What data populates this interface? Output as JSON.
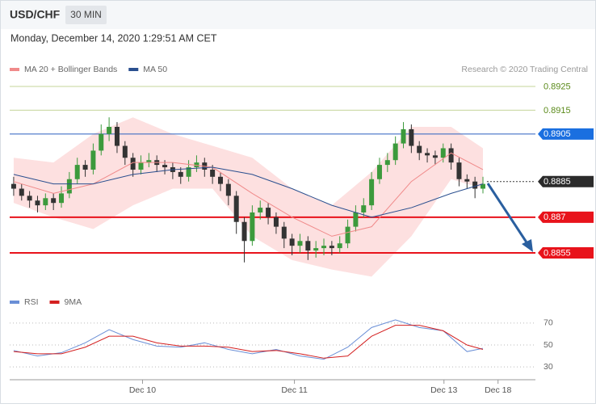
{
  "header": {
    "symbol": "USD/CHF",
    "interval": "30 MIN",
    "timestamp": "Monday, December 14, 2020 1:29:51 AM CET"
  },
  "chart_data": [
    {
      "type": "candlestick",
      "credit": "Research © 2020 Trading Central",
      "xlim": [
        -0.5,
        65.6
      ],
      "ylim": [
        0.8841,
        0.8931
      ],
      "up_color": "#3c9a3c",
      "down_color": "#333333",
      "candles": [
        [
          0.8884,
          0.8887,
          0.8879,
          0.8882
        ],
        [
          0.8882,
          0.8884,
          0.8877,
          0.8879
        ],
        [
          0.8879,
          0.8881,
          0.8874,
          0.8877
        ],
        [
          0.8877,
          0.8879,
          0.8872,
          0.8875
        ],
        [
          0.8875,
          0.888,
          0.8873,
          0.8878
        ],
        [
          0.8878,
          0.888,
          0.8873,
          0.8876
        ],
        [
          0.8876,
          0.8883,
          0.8874,
          0.888
        ],
        [
          0.888,
          0.8889,
          0.8878,
          0.8886
        ],
        [
          0.8886,
          0.8895,
          0.8884,
          0.8892
        ],
        [
          0.8892,
          0.8894,
          0.8887,
          0.889
        ],
        [
          0.889,
          0.8901,
          0.8888,
          0.8898
        ],
        [
          0.8898,
          0.8909,
          0.8896,
          0.8905
        ],
        [
          0.8905,
          0.8912,
          0.8902,
          0.8908
        ],
        [
          0.8908,
          0.891,
          0.8897,
          0.89
        ],
        [
          0.89,
          0.8902,
          0.8892,
          0.8895
        ],
        [
          0.8895,
          0.8897,
          0.8887,
          0.889
        ],
        [
          0.889,
          0.8896,
          0.8888,
          0.8893
        ],
        [
          0.8893,
          0.8897,
          0.8891,
          0.8894
        ],
        [
          0.8894,
          0.8896,
          0.8889,
          0.8892
        ],
        [
          0.8892,
          0.8894,
          0.8888,
          0.8891
        ],
        [
          0.8891,
          0.8893,
          0.8886,
          0.8889
        ],
        [
          0.8889,
          0.8891,
          0.8884,
          0.8887
        ],
        [
          0.8887,
          0.8894,
          0.8885,
          0.8891
        ],
        [
          0.8891,
          0.8896,
          0.8889,
          0.8893
        ],
        [
          0.8893,
          0.8895,
          0.8887,
          0.889
        ],
        [
          0.889,
          0.8892,
          0.8884,
          0.8887
        ],
        [
          0.8887,
          0.8889,
          0.8881,
          0.8884
        ],
        [
          0.8884,
          0.8886,
          0.8875,
          0.8879
        ],
        [
          0.8879,
          0.8881,
          0.8863,
          0.8868
        ],
        [
          0.8868,
          0.887,
          0.8851,
          0.886
        ],
        [
          0.886,
          0.8875,
          0.8858,
          0.8872
        ],
        [
          0.8872,
          0.8877,
          0.8869,
          0.8874
        ],
        [
          0.8874,
          0.8876,
          0.8867,
          0.887
        ],
        [
          0.887,
          0.8872,
          0.8863,
          0.8866
        ],
        [
          0.8866,
          0.8868,
          0.8857,
          0.8861
        ],
        [
          0.8861,
          0.8863,
          0.8854,
          0.8858
        ],
        [
          0.8858,
          0.8863,
          0.8855,
          0.886
        ],
        [
          0.886,
          0.8862,
          0.8852,
          0.8856
        ],
        [
          0.8856,
          0.886,
          0.8853,
          0.8857
        ],
        [
          0.8857,
          0.8861,
          0.8854,
          0.8858
        ],
        [
          0.8858,
          0.886,
          0.8854,
          0.8857
        ],
        [
          0.8857,
          0.8862,
          0.8855,
          0.8859
        ],
        [
          0.8859,
          0.8869,
          0.8857,
          0.8866
        ],
        [
          0.8866,
          0.8875,
          0.8864,
          0.8872
        ],
        [
          0.8872,
          0.8878,
          0.887,
          0.8875
        ],
        [
          0.8875,
          0.8889,
          0.8873,
          0.8886
        ],
        [
          0.8886,
          0.8895,
          0.8884,
          0.8892
        ],
        [
          0.8892,
          0.8897,
          0.8889,
          0.8894
        ],
        [
          0.8894,
          0.8904,
          0.8892,
          0.8901
        ],
        [
          0.8901,
          0.891,
          0.8899,
          0.8907
        ],
        [
          0.8907,
          0.8909,
          0.8897,
          0.89
        ],
        [
          0.89,
          0.8902,
          0.8894,
          0.8897
        ],
        [
          0.8897,
          0.8899,
          0.8893,
          0.8896
        ],
        [
          0.8896,
          0.8898,
          0.8892,
          0.8895
        ],
        [
          0.8895,
          0.8901,
          0.8893,
          0.8899
        ],
        [
          0.8899,
          0.8901,
          0.889,
          0.8893
        ],
        [
          0.8893,
          0.8895,
          0.8883,
          0.8886
        ],
        [
          0.8886,
          0.8888,
          0.8882,
          0.8885
        ],
        [
          0.8885,
          0.8887,
          0.8878,
          0.8882
        ],
        [
          0.8882,
          0.8887,
          0.888,
          0.8884
        ]
      ],
      "series": [
        {
          "name": "MA 20 + Bollinger Bands",
          "color": "#f08a8a",
          "band_color": "#fde0e0",
          "x": [
            0,
            5,
            10,
            15,
            20,
            25,
            30,
            35,
            40,
            45,
            50,
            55,
            59
          ],
          "values": [
            0.8885,
            0.888,
            0.8884,
            0.8893,
            0.8893,
            0.8891,
            0.888,
            0.887,
            0.8862,
            0.8866,
            0.8885,
            0.8897,
            0.889
          ],
          "upper": [
            0.8895,
            0.8893,
            0.8905,
            0.8912,
            0.8905,
            0.89,
            0.8895,
            0.8882,
            0.8875,
            0.8889,
            0.8908,
            0.8908,
            0.8899
          ],
          "lower": [
            0.8876,
            0.887,
            0.8865,
            0.8875,
            0.8882,
            0.8882,
            0.8862,
            0.8852,
            0.8848,
            0.8845,
            0.8862,
            0.8886,
            0.8882
          ]
        },
        {
          "name": "MA 50",
          "color": "#2a4f8f",
          "x": [
            0,
            5,
            10,
            15,
            20,
            25,
            30,
            35,
            40,
            45,
            50,
            55,
            59
          ],
          "values": [
            0.8888,
            0.8884,
            0.8884,
            0.8888,
            0.889,
            0.8891,
            0.8888,
            0.8882,
            0.8875,
            0.887,
            0.8874,
            0.888,
            0.8884
          ]
        }
      ],
      "levels": [
        {
          "value": 0.8925,
          "color": "#c5d59a",
          "text_color": "#5a8a1a",
          "boxed": false
        },
        {
          "value": 0.8915,
          "color": "#c5d59a",
          "text_color": "#5a8a1a",
          "boxed": false
        },
        {
          "value": 0.8905,
          "color": "#2a5fbf",
          "text_color": "#ffffff",
          "box_color": "#1a6fe0",
          "boxed": true
        },
        {
          "value": 0.8885,
          "color": "#333333",
          "text_color": "#ffffff",
          "box_color": "#2b2b2b",
          "boxed": true,
          "dotted": true
        },
        {
          "value": 0.887,
          "color": "#e8131b",
          "text_color": "#ffffff",
          "box_color": "#e8131b",
          "boxed": true
        },
        {
          "value": 0.8855,
          "color": "#e8131b",
          "text_color": "#ffffff",
          "box_color": "#e8131b",
          "boxed": true
        }
      ]
    },
    {
      "type": "line",
      "xlim": [
        -0.5,
        65.6
      ],
      "ylim": [
        22,
        81
      ],
      "yticks": [
        30,
        50,
        70
      ],
      "grid": true,
      "xticks": [
        {
          "value": 16.2,
          "label": "Dec 10"
        },
        {
          "value": 35.3,
          "label": "Dec 11"
        },
        {
          "value": 54.1,
          "label": "Dec 13"
        },
        {
          "value": 60.9,
          "label": "Dec 18"
        }
      ],
      "series": [
        {
          "name": "RSI",
          "color": "#6a8fd6",
          "x": [
            0,
            3,
            6,
            9,
            12,
            15,
            18,
            21,
            24,
            27,
            30,
            33,
            36,
            39,
            42,
            45,
            48,
            51,
            54,
            57,
            59
          ],
          "values": [
            45,
            40,
            43,
            52,
            64,
            55,
            49,
            48,
            52,
            46,
            42,
            46,
            40,
            37,
            48,
            66,
            73,
            66,
            63,
            44,
            47
          ]
        },
        {
          "name": "9MA",
          "color": "#d42020",
          "x": [
            0,
            3,
            6,
            9,
            12,
            15,
            18,
            21,
            24,
            27,
            30,
            33,
            36,
            39,
            42,
            45,
            48,
            51,
            54,
            57,
            59
          ],
          "values": [
            44,
            42,
            42,
            48,
            58,
            58,
            52,
            49,
            49,
            48,
            44,
            45,
            42,
            38,
            40,
            58,
            68,
            68,
            63,
            50,
            46
          ]
        }
      ]
    }
  ]
}
